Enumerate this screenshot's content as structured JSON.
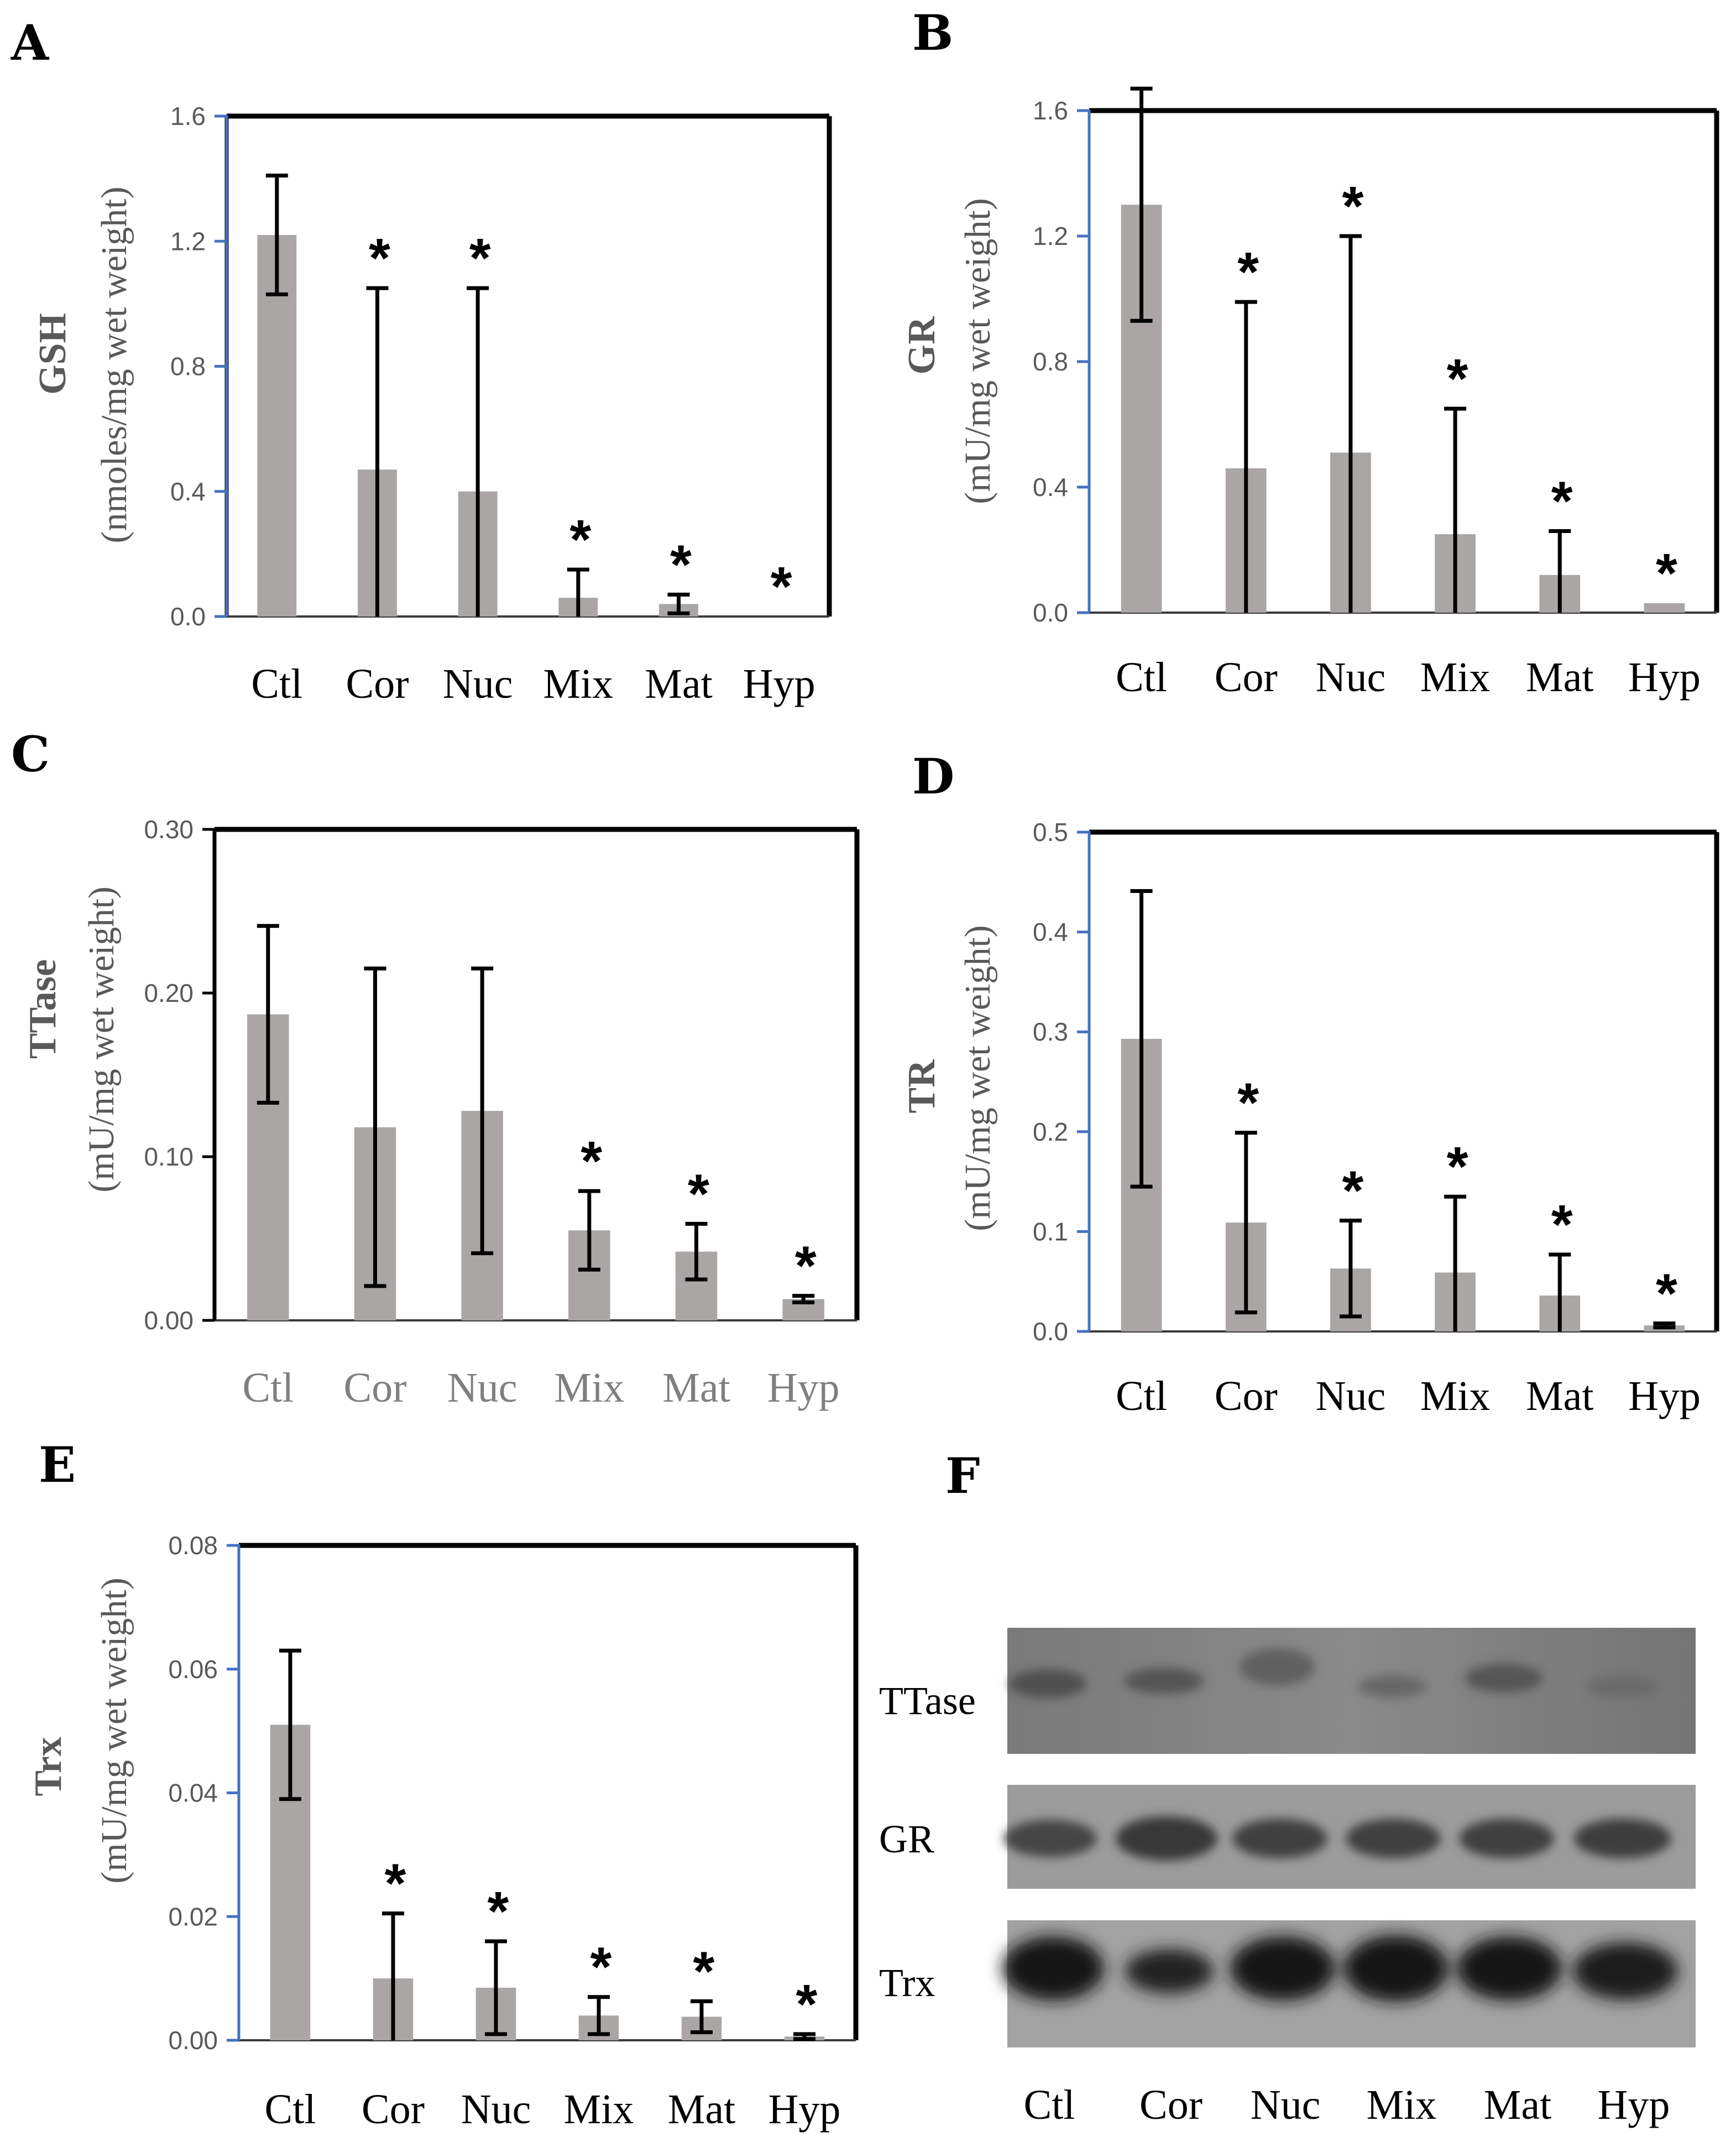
{
  "figure": {
    "categories": [
      "Ctl",
      "Cor",
      "Nuc",
      "Mix",
      "Mat",
      "Hyp"
    ],
    "colors": {
      "bar": "#aaa6a6",
      "axis": "#4472c4",
      "frame": "#000000",
      "tick_label": "#595959",
      "muted_text": "#7f7f7f"
    }
  },
  "chart_data": [
    {
      "panel": "A",
      "type": "bar",
      "title": "",
      "ylabel_title": "GSH",
      "ylabel_unit": "(nmoles/mg wet weight)",
      "categories": [
        "Ctl",
        "Cor",
        "Nuc",
        "Mix",
        "Mat",
        "Hyp"
      ],
      "values": [
        1.22,
        0.47,
        0.4,
        0.06,
        0.04,
        0.0
      ],
      "errors": [
        0.19,
        0.58,
        0.65,
        0.09,
        0.03,
        0.0
      ],
      "significant": [
        false,
        true,
        true,
        true,
        true,
        true
      ],
      "ylim": [
        0,
        1.6
      ],
      "yticks": [
        "0.0",
        "0.4",
        "0.8",
        "1.2",
        "1.6"
      ],
      "ytick_values": [
        0,
        0.4,
        0.8,
        1.2,
        1.6
      ]
    },
    {
      "panel": "B",
      "type": "bar",
      "title": "",
      "ylabel_title": "GR",
      "ylabel_unit": "(mU/mg wet weight)",
      "categories": [
        "Ctl",
        "Cor",
        "Nuc",
        "Mix",
        "Mat",
        "Hyp"
      ],
      "values": [
        1.3,
        0.46,
        0.51,
        0.25,
        0.12,
        0.03
      ],
      "errors": [
        0.37,
        0.53,
        0.69,
        0.4,
        0.14,
        0.0
      ],
      "significant": [
        false,
        true,
        true,
        true,
        true,
        true
      ],
      "ylim": [
        0,
        1.6
      ],
      "yticks": [
        "0.0",
        "0.4",
        "0.8",
        "1.2",
        "1.6"
      ],
      "ytick_values": [
        0,
        0.4,
        0.8,
        1.2,
        1.6
      ]
    },
    {
      "panel": "C",
      "type": "bar",
      "title": "",
      "ylabel_title": "TTase",
      "ylabel_unit": "(mU/mg wet weight)",
      "categories": [
        "Ctl",
        "Cor",
        "Nuc",
        "Mix",
        "Mat",
        "Hyp"
      ],
      "values": [
        0.187,
        0.118,
        0.128,
        0.055,
        0.042,
        0.013
      ],
      "errors": [
        0.054,
        0.097,
        0.087,
        0.024,
        0.017,
        0.002
      ],
      "significant": [
        false,
        false,
        false,
        true,
        true,
        true
      ],
      "ylim": [
        0,
        0.3
      ],
      "yticks": [
        "0.00",
        "0.10",
        "0.20",
        "0.30"
      ],
      "ytick_values": [
        0,
        0.1,
        0.2,
        0.3
      ]
    },
    {
      "panel": "D",
      "type": "bar",
      "title": "",
      "ylabel_title": "TR",
      "ylabel_unit": "(mU/mg wet weight)",
      "categories": [
        "Ctl",
        "Cor",
        "Nuc",
        "Mix",
        "Mat",
        "Hyp"
      ],
      "values": [
        0.293,
        0.109,
        0.063,
        0.059,
        0.036,
        0.006
      ],
      "errors": [
        0.148,
        0.09,
        0.048,
        0.076,
        0.041,
        0.002
      ],
      "significant": [
        false,
        true,
        true,
        true,
        true,
        true
      ],
      "ylim": [
        0,
        0.5
      ],
      "yticks": [
        "0.0",
        "0.1",
        "0.2",
        "0.3",
        "0.4",
        "0.5"
      ],
      "ytick_values": [
        0,
        0.1,
        0.2,
        0.3,
        0.4,
        0.5
      ]
    },
    {
      "panel": "E",
      "type": "bar",
      "title": "",
      "ylabel_title": "Trx",
      "ylabel_unit": "(mU/mg wet weight)",
      "categories": [
        "Ctl",
        "Cor",
        "Nuc",
        "Mix",
        "Mat",
        "Hyp"
      ],
      "values": [
        0.051,
        0.01,
        0.0085,
        0.004,
        0.0038,
        0.0006
      ],
      "errors": [
        0.012,
        0.0105,
        0.0075,
        0.003,
        0.0025,
        0.0004
      ],
      "significant": [
        false,
        true,
        true,
        true,
        true,
        true
      ],
      "ylim": [
        0,
        0.08
      ],
      "yticks": [
        "0.00",
        "0.02",
        "0.04",
        "0.06",
        "0.08"
      ],
      "ytick_values": [
        0,
        0.02,
        0.04,
        0.06,
        0.08
      ]
    }
  ],
  "western_blot": {
    "panel": "F",
    "rows": [
      "TTase",
      "GR",
      "Trx"
    ],
    "lanes": [
      "Ctl",
      "Cor",
      "Nuc",
      "Mix",
      "Mat",
      "Hyp"
    ]
  }
}
